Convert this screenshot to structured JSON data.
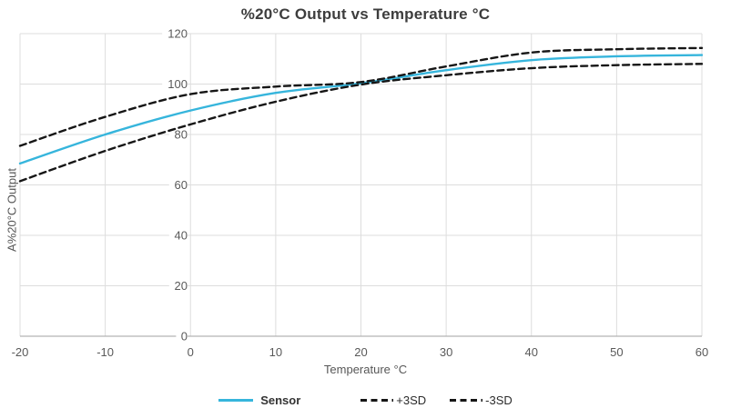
{
  "title": "%20°C Output vs Temperature °C",
  "axes": {
    "x": {
      "title": "Temperature °C",
      "ticks": [
        -20,
        -10,
        0,
        10,
        20,
        30,
        40,
        50,
        60
      ]
    },
    "y": {
      "title": "A%20°C Output",
      "ticks": [
        0,
        20,
        40,
        60,
        80,
        100,
        120
      ]
    }
  },
  "legend": [
    {
      "label": "Sensor",
      "style": "solid",
      "color": "#36b5dc"
    },
    {
      "label": "+3SD",
      "style": "dashed",
      "color": "#161616"
    },
    {
      "label": "-3SD",
      "style": "dashed",
      "color": "#161616"
    }
  ],
  "colors": {
    "grid": "#dddddd",
    "axis": "#b3b3b3",
    "tick_label": "#595959",
    "sensor_line": "#36b5dc",
    "sd_line": "#161616",
    "title": "#3d3d3d",
    "background": "#ffffff"
  },
  "chart_data": {
    "type": "line",
    "title": "%20°C Output vs Temperature °C",
    "xlabel": "Temperature °C",
    "ylabel": "A%20°C Output",
    "x": [
      -20,
      -10,
      0,
      10,
      20,
      30,
      40,
      50,
      60
    ],
    "series": [
      {
        "name": "Sensor",
        "values": [
          68.5,
          80,
          89.5,
          96.5,
          100.3,
          105.5,
          109.5,
          111,
          111.5
        ],
        "color": "#36b5dc",
        "dash": false
      },
      {
        "name": "+3SD",
        "values": [
          75.5,
          87,
          96,
          99,
          100.8,
          107,
          112.5,
          113.8,
          114.3
        ],
        "color": "#161616",
        "dash": true
      },
      {
        "name": "-3SD",
        "values": [
          61.5,
          73.5,
          84,
          93,
          99.8,
          103.5,
          106.3,
          107.5,
          108
        ],
        "color": "#161616",
        "dash": true
      }
    ],
    "xlim": [
      -20,
      60
    ],
    "ylim": [
      0,
      120
    ],
    "grid": true,
    "legend_position": "bottom",
    "notes": "All three series converge at approximately (20, 100); y tick labels are anchored at the x=0 gridline"
  }
}
